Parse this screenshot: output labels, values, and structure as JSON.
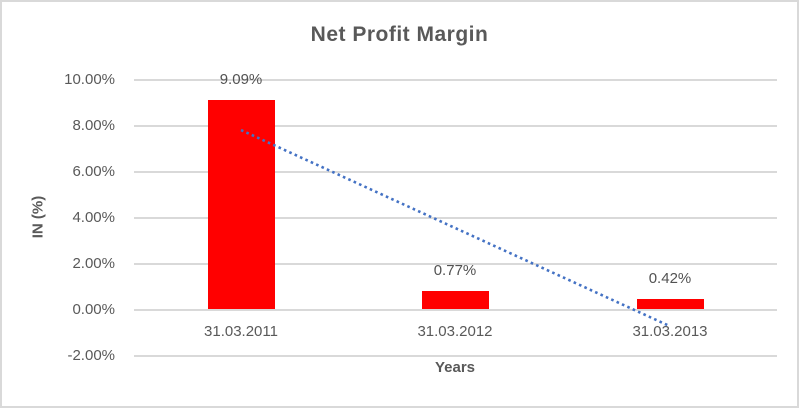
{
  "chart_data": {
    "type": "bar",
    "title": "Net Profit Margin",
    "xlabel": "Years",
    "ylabel": "IN (%)",
    "categories": [
      "31.03.2011",
      "31.03.2012",
      "31.03.2013"
    ],
    "values": [
      9.09,
      0.77,
      0.42
    ],
    "data_labels": [
      "9.09%",
      "0.77%",
      "0.42%"
    ],
    "value_unit": "percent",
    "ylim": [
      -2,
      10
    ],
    "yticks": [
      {
        "value": 10,
        "label": "10.00%"
      },
      {
        "value": 8,
        "label": "8.00%"
      },
      {
        "value": 6,
        "label": "6.00%"
      },
      {
        "value": 4,
        "label": "4.00%"
      },
      {
        "value": 2,
        "label": "2.00%"
      },
      {
        "value": 0,
        "label": "0.00%"
      },
      {
        "value": -2,
        "label": "-2.00%"
      }
    ],
    "grid": true,
    "legend": "none",
    "bar_color": "#FF0000",
    "gridline_color": "#D9D9D9",
    "text_color": "#595959",
    "trendline": {
      "type": "linear",
      "style": "dotted",
      "color": "#4472C4",
      "start_category_index": 0,
      "end_category_index": 2,
      "start_value": 7.78,
      "end_value": -0.75
    }
  }
}
